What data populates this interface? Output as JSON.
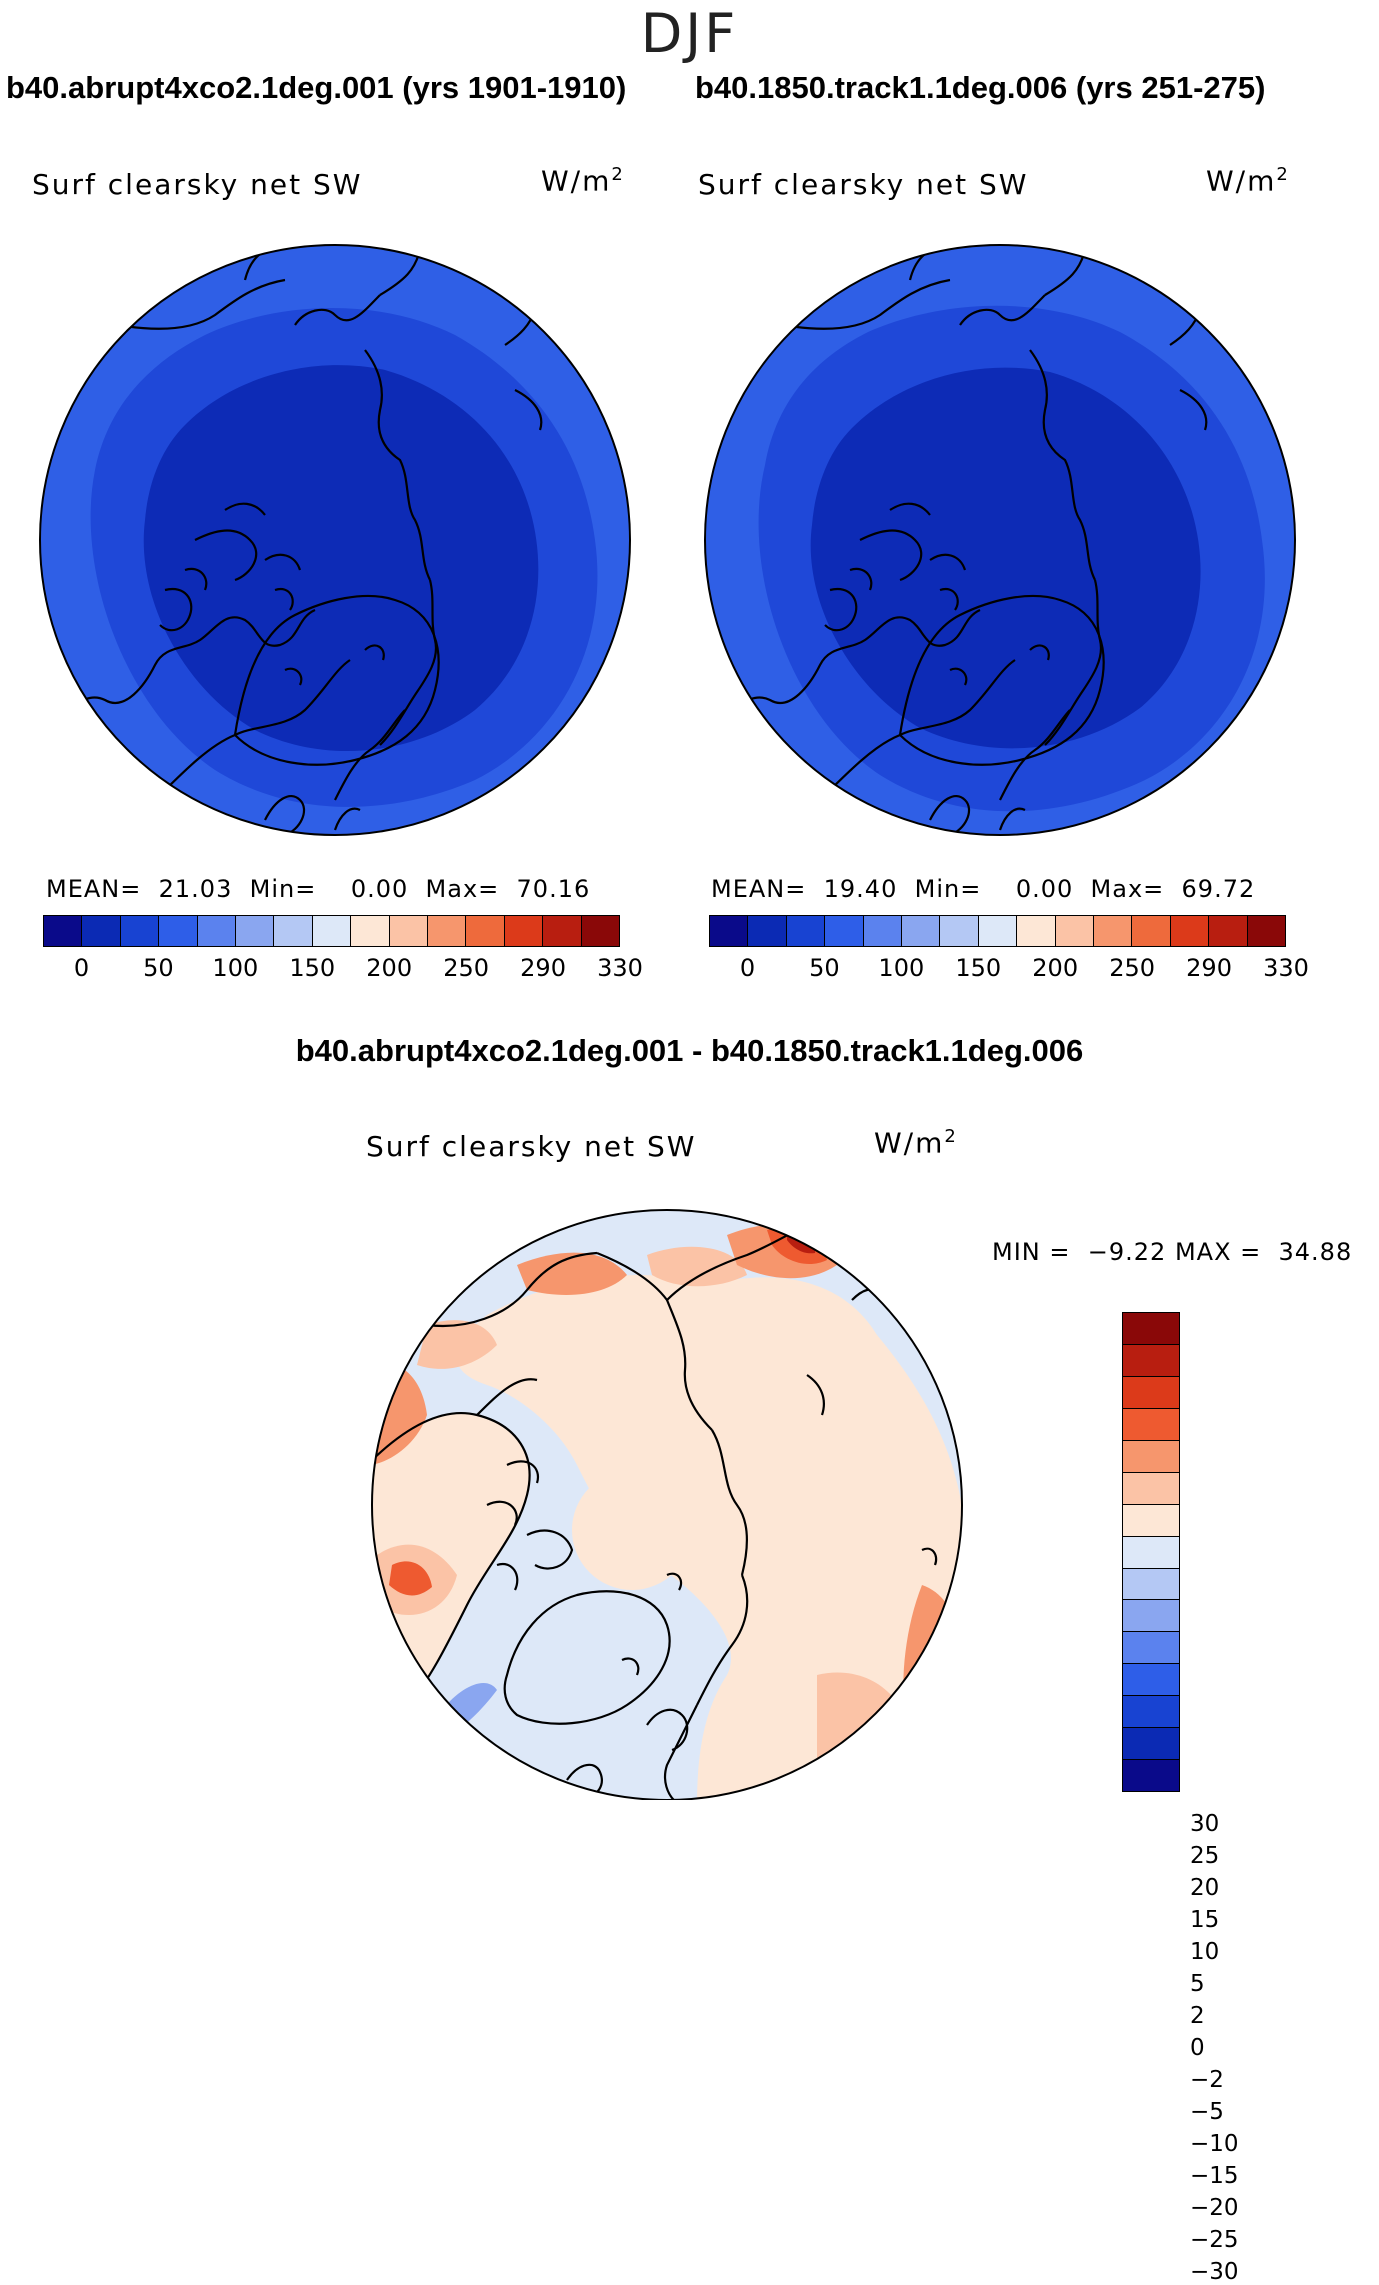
{
  "season": "DJF",
  "panels": [
    {
      "case_title": "b40.abrupt4xco2.1deg.001 (yrs 1901-1910)",
      "field": "Surf clearsky net SW",
      "units": "W/m",
      "units_sup": "2",
      "stats": {
        "mean_label": "MEAN=",
        "mean": "21.03",
        "min_label": "Min=",
        "min": "0.00",
        "max_label": "Max=",
        "max": "70.16"
      }
    },
    {
      "case_title": "b40.1850.track1.1deg.006 (yrs 251-275)",
      "field": "Surf clearsky net SW",
      "units": "W/m",
      "units_sup": "2",
      "stats": {
        "mean_label": "MEAN=",
        "mean": "19.40",
        "min_label": "Min=",
        "min": "0.00",
        "max_label": "Max=",
        "max": "69.72"
      }
    }
  ],
  "abs_colorbar": {
    "colors": [
      "#0a0a8a",
      "#0b2ab4",
      "#1843d2",
      "#2e5ee8",
      "#5b82ee",
      "#8aa6f0",
      "#b4c8f4",
      "#dde8f8",
      "#fde7d6",
      "#fbc3a6",
      "#f6966d",
      "#ee6a3c",
      "#dc3a1a",
      "#b81e10",
      "#8a0808"
    ],
    "labels": [
      "0",
      "50",
      "100",
      "150",
      "200",
      "250",
      "290",
      "330"
    ]
  },
  "diff": {
    "title": "b40.abrupt4xco2.1deg.001 - b40.1850.track1.1deg.006",
    "field": "Surf clearsky net SW",
    "units": "W/m",
    "units_sup": "2",
    "minmax": {
      "min_label": "MIN =",
      "min": "−9.22",
      "max_label": "MAX =",
      "max": "34.88"
    }
  },
  "diff_colorbar": {
    "colors": [
      "#8a0808",
      "#b81e10",
      "#dc3a1a",
      "#ee5a30",
      "#f6966d",
      "#fbc3a6",
      "#fde7d6",
      "#dde8f8",
      "#b4c8f4",
      "#8aa6f0",
      "#5b82ee",
      "#2e5ee8",
      "#1843d2",
      "#0b2ab4",
      "#0a0a8a"
    ],
    "labels": [
      "30",
      "25",
      "20",
      "15",
      "10",
      "5",
      "2",
      "0",
      "−2",
      "−5",
      "−10",
      "−15",
      "−20",
      "−25",
      "−30"
    ]
  },
  "map_colors": {
    "abs_outer": "#2f5fe6",
    "abs_mid": "#1f48d8",
    "abs_inner": "#0d2bb6",
    "diff_land": "#fde7d6",
    "diff_ocean": "#dde8f8",
    "diff_warm1": "#fbc3a6",
    "diff_warm2": "#f6966d",
    "diff_warm3": "#ee5a30",
    "diff_warm4": "#b81e10",
    "diff_cool": "#8aa6f0"
  }
}
